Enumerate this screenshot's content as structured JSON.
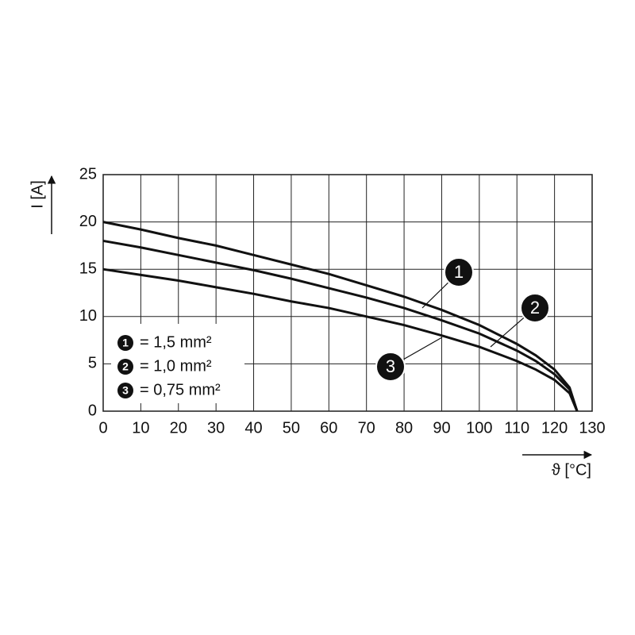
{
  "chart_data": {
    "type": "line",
    "ylabel": "I [A]",
    "xlabel": "ϑ [°C]",
    "x": [
      0,
      10,
      20,
      30,
      40,
      50,
      60,
      70,
      80,
      90,
      100,
      110,
      115,
      120,
      124,
      126
    ],
    "series": [
      {
        "marker": "1",
        "name": "= 1,5 mm²",
        "color": "#111111",
        "values": [
          20,
          19.2,
          18.3,
          17.5,
          16.5,
          15.5,
          14.5,
          13.3,
          12.1,
          10.7,
          9.1,
          7.1,
          5.9,
          4.4,
          2.5,
          0
        ]
      },
      {
        "marker": "2",
        "name": "= 1,0 mm²",
        "color": "#111111",
        "values": [
          18,
          17.3,
          16.5,
          15.7,
          14.9,
          14.0,
          13.0,
          12.0,
          10.9,
          9.6,
          8.2,
          6.4,
          5.3,
          3.9,
          2.3,
          0
        ]
      },
      {
        "marker": "3",
        "name": "= 0,75 mm²",
        "color": "#111111",
        "values": [
          15,
          14.4,
          13.8,
          13.1,
          12.4,
          11.6,
          10.9,
          10.0,
          9.1,
          8.0,
          6.8,
          5.3,
          4.4,
          3.3,
          1.9,
          0
        ]
      }
    ],
    "xlim": [
      0,
      130
    ],
    "ylim": [
      0,
      25
    ],
    "xticks": [
      0,
      10,
      20,
      30,
      40,
      50,
      60,
      70,
      80,
      90,
      100,
      110,
      120,
      130
    ],
    "yticks": [
      0,
      5,
      10,
      15,
      20,
      25
    ],
    "grid": true
  }
}
